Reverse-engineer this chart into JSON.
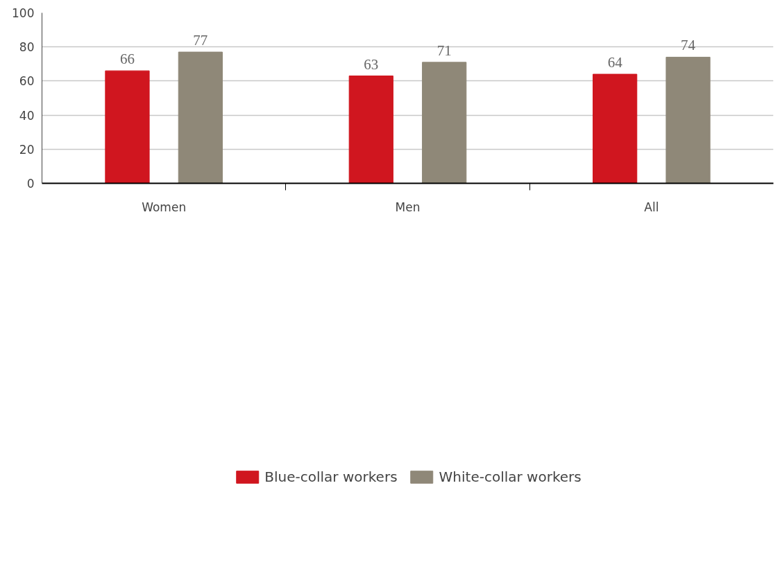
{
  "chart_data": {
    "type": "bar",
    "categories": [
      "Women",
      "Men",
      "All"
    ],
    "series": [
      {
        "name": "Blue-collar workers",
        "color": "#d0161f",
        "values": [
          66,
          63,
          64
        ]
      },
      {
        "name": "White-collar workers",
        "color": "#8f8878",
        "values": [
          77,
          71,
          74
        ]
      }
    ],
    "ylim": [
      0,
      100
    ],
    "yticks": [
      0,
      20,
      40,
      60,
      80,
      100
    ],
    "grid": "y",
    "legend": "bottom",
    "data_labels": true
  }
}
